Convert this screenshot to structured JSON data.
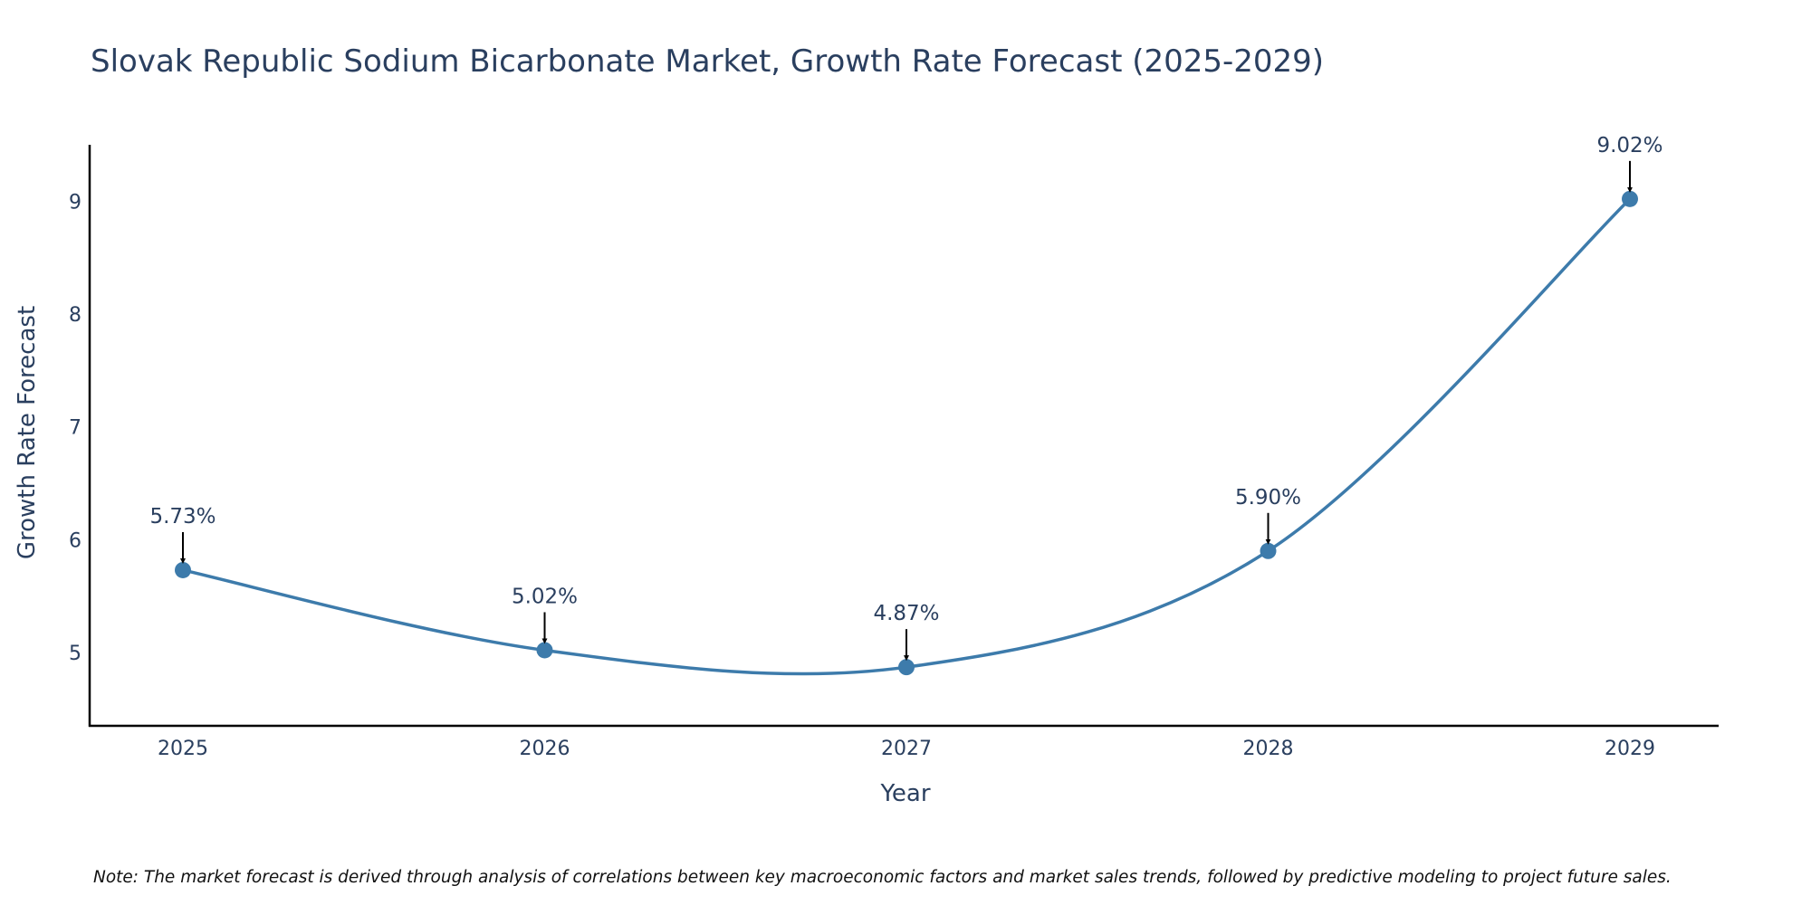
{
  "chart_data": {
    "type": "line",
    "title": "Slovak Republic Sodium Bicarbonate Market, Growth Rate Forecast (2025-2029)",
    "xlabel": "Year",
    "ylabel": "Growth Rate Forecast",
    "categories": [
      "2025",
      "2026",
      "2027",
      "2028",
      "2029"
    ],
    "values": [
      5.73,
      5.02,
      4.87,
      5.9,
      9.02
    ],
    "data_labels": [
      "5.73%",
      "5.02%",
      "4.87%",
      "5.90%",
      "9.02%"
    ],
    "yticks": [
      5,
      6,
      7,
      8,
      9
    ],
    "ytick_labels": [
      "5",
      "6",
      "7",
      "8",
      "9"
    ],
    "ylim": [
      4.35,
      9.5
    ],
    "grid": false,
    "line_shape": "spline",
    "colors": {
      "line": "#3d7bab",
      "marker": "#3d7bab",
      "axis": "#000000",
      "arrow": "#000000"
    },
    "note": "Note: The market forecast is derived through analysis of correlations between key macroeconomic factors and market sales trends, followed by predictive modeling to project future sales."
  }
}
